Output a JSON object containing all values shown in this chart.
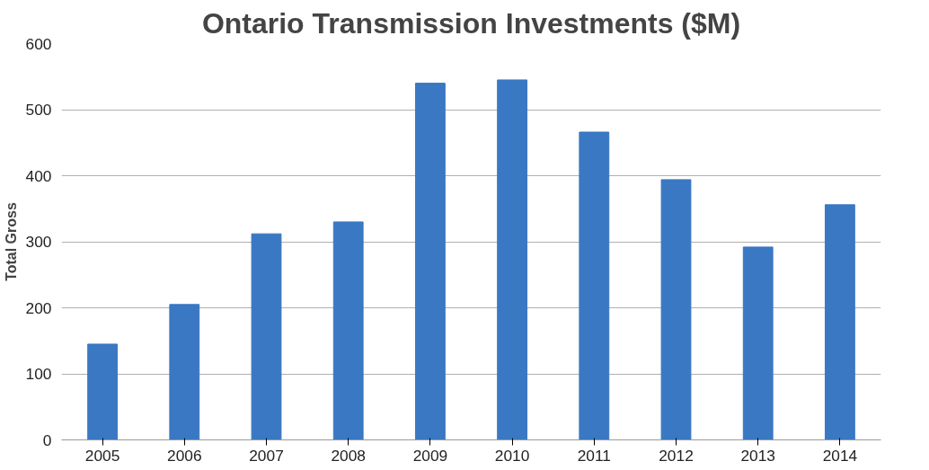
{
  "chart_data": {
    "type": "bar",
    "title": "Ontario Transmission Investments ($M)",
    "ylabel": "Total Gross",
    "categories": [
      "2005",
      "2006",
      "2007",
      "2008",
      "2009",
      "2010",
      "2011",
      "2012",
      "2013",
      "2014"
    ],
    "values": [
      145,
      205,
      312,
      330,
      540,
      545,
      466,
      394,
      292,
      356
    ],
    "color": "#3a78c3",
    "ylim": [
      0,
      600
    ],
    "yticks": [
      0,
      100,
      200,
      300,
      400,
      500,
      600
    ],
    "grid": "y"
  }
}
